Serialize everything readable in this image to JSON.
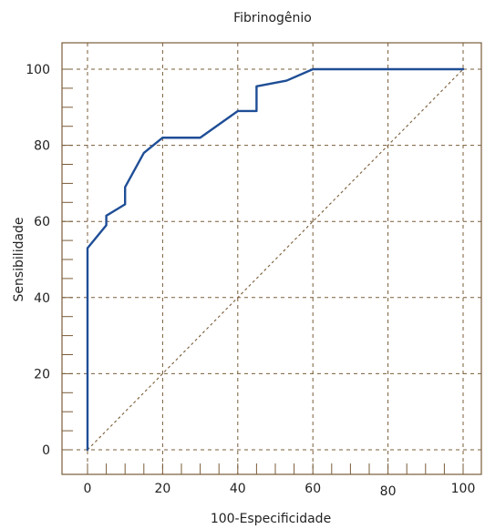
{
  "chart_data": {
    "type": "line",
    "title": "Fibrinogênio",
    "xlabel": "100-Especificidade",
    "ylabel": "Sensibilidade",
    "xlim": [
      0,
      100
    ],
    "ylim": [
      0,
      100
    ],
    "x_ticks": [
      "0",
      "20",
      "40",
      "60",
      "80",
      "100"
    ],
    "y_ticks": [
      "0",
      "20",
      "40",
      "60",
      "80",
      "100"
    ],
    "grid": true,
    "colors": {
      "series": "#1f4e96",
      "reference": "#7a5c38",
      "grid": "#7a5c38",
      "frame": "#7a5c38"
    },
    "series": [
      {
        "values": [
          [
            0,
            0
          ],
          [
            0,
            53
          ],
          [
            5,
            59
          ],
          [
            5,
            61.5
          ],
          [
            10,
            64.5
          ],
          [
            10,
            69
          ],
          [
            15,
            78
          ],
          [
            20,
            82
          ],
          [
            30,
            82
          ],
          [
            40,
            89
          ],
          [
            45,
            89
          ],
          [
            45,
            95.5
          ],
          [
            53,
            97
          ],
          [
            60,
            100
          ],
          [
            100,
            100
          ]
        ]
      },
      {
        "values": [
          [
            0,
            0
          ],
          [
            100,
            100
          ]
        ]
      }
    ]
  }
}
